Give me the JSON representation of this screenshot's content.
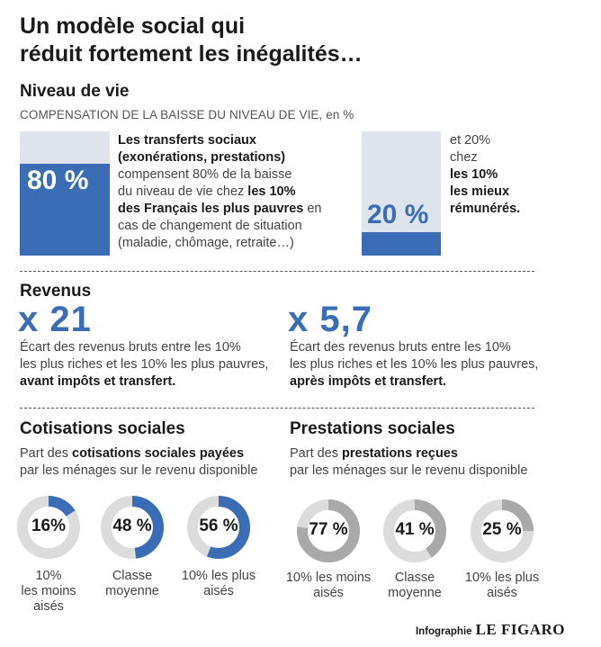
{
  "title_line1": "Un modèle social qui",
  "title_line2": "réduit fortement les inégalités…",
  "niveau": {
    "heading": "Niveau de vie",
    "subtitle": "COMPENSATION DE LA BAISSE DU NIVEAU DE VIE, en %",
    "left_label": "80 %",
    "left_lines": [
      {
        "parts": [
          {
            "t": "Les transferts sociaux",
            "b": true
          }
        ]
      },
      {
        "parts": [
          {
            "t": "(exonérations, prestations)",
            "b": true
          }
        ]
      },
      {
        "parts": [
          {
            "t": "compensent 80% de la baisse",
            "b": false
          }
        ]
      },
      {
        "parts": [
          {
            "t": "du niveau de vie chez ",
            "b": false
          },
          {
            "t": "les 10%",
            "b": true
          }
        ]
      },
      {
        "parts": [
          {
            "t": "des Français les plus pauvres",
            "b": true
          },
          {
            "t": " en",
            "b": false
          }
        ]
      },
      {
        "parts": [
          {
            "t": "cas de changement de situation",
            "b": false
          }
        ]
      },
      {
        "parts": [
          {
            "t": "(maladie, chômage, retraite…)",
            "b": false
          }
        ]
      }
    ],
    "right_label": "20 %",
    "right_lines": [
      {
        "parts": [
          {
            "t": "et 20%",
            "b": false
          }
        ]
      },
      {
        "parts": [
          {
            "t": "chez",
            "b": false
          }
        ]
      },
      {
        "parts": [
          {
            "t": "les 10%",
            "b": true
          }
        ]
      },
      {
        "parts": [
          {
            "t": "les mieux",
            "b": true
          }
        ]
      },
      {
        "parts": [
          {
            "t": "rémunérés.",
            "b": true
          }
        ]
      }
    ]
  },
  "revenus": {
    "heading": "Revenus",
    "left_big": "x 21",
    "left_lines": [
      {
        "parts": [
          {
            "t": "Écart des revenus bruts entre les 10%",
            "b": false
          }
        ]
      },
      {
        "parts": [
          {
            "t": "les plus riches et les 10% les plus pauvres,",
            "b": false
          }
        ]
      },
      {
        "parts": [
          {
            "t": "avant impôts et transfert.",
            "b": true
          }
        ]
      }
    ],
    "right_big": "x 5,7",
    "right_lines": [
      {
        "parts": [
          {
            "t": "Écart des revenus bruts entre les 10%",
            "b": false
          }
        ]
      },
      {
        "parts": [
          {
            "t": "les plus riches et les 10% les plus pauvres,",
            "b": false
          }
        ]
      },
      {
        "parts": [
          {
            "t": "après impôts et transfert.",
            "b": true
          }
        ]
      }
    ]
  },
  "cotisations": {
    "heading": "Cotisations sociales",
    "sub_lines": [
      {
        "parts": [
          {
            "t": "Part des ",
            "b": false
          },
          {
            "t": "cotisations sociales payées",
            "b": true
          }
        ]
      },
      {
        "parts": [
          {
            "t": "par les ménages sur le revenu disponible",
            "b": false
          }
        ]
      }
    ]
  },
  "prestations": {
    "heading": "Prestations sociales",
    "sub_lines": [
      {
        "parts": [
          {
            "t": "Part des ",
            "b": false
          },
          {
            "t": "prestations reçues",
            "b": true
          }
        ]
      },
      {
        "parts": [
          {
            "t": "par les ménages sur le revenu disponible",
            "b": false
          }
        ]
      }
    ]
  },
  "footer": {
    "label": "Infographie",
    "brand": "LE FIGARO"
  },
  "chart_data": [
    {
      "type": "bar",
      "title": "Niveau de vie",
      "subtitle": "COMPENSATION DE LA BAISSE DU NIVEAU DE VIE, en %",
      "categories": [
        "les 10% des Français les plus pauvres",
        "les 10% les mieux rémunérés"
      ],
      "values": [
        80,
        20
      ],
      "unit": "%",
      "ylim": [
        0,
        100
      ],
      "fill_color": "#3a6db5",
      "track_color": "#dfe3ec"
    },
    {
      "type": "pie",
      "title": "Cotisations sociales",
      "categories": [
        "10%\nles moins\naisés",
        "Classe\nmoyenne",
        "10% les plus\naisés"
      ],
      "values": [
        16,
        48,
        56
      ],
      "value_labels": [
        "16%",
        "48 %",
        "56 %"
      ],
      "unit": "%",
      "fill_color": "#3a6db5",
      "track_color": "#dcdcdc"
    },
    {
      "type": "pie",
      "title": "Prestations sociales",
      "categories": [
        "10% les moins\naisés",
        "Classe\nmoyenne",
        "10% les plus\naisés"
      ],
      "values": [
        77,
        41,
        25
      ],
      "value_labels": [
        "77 %",
        "41 %",
        "25 %"
      ],
      "unit": "%",
      "fill_color": "#a9a9a9",
      "track_color": "#dcdcdc"
    }
  ]
}
